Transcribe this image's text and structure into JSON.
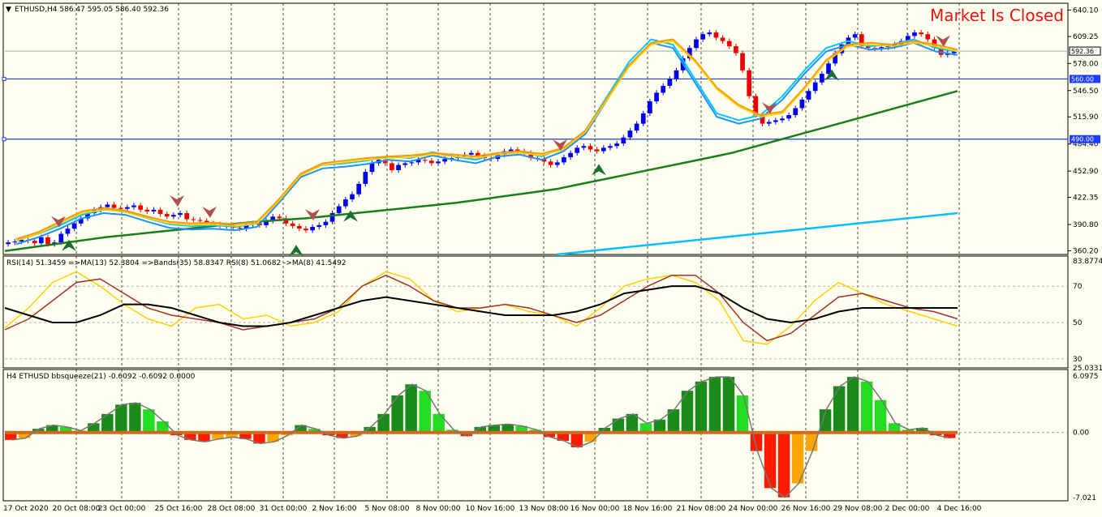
{
  "status": {
    "market_closed": "Market Is Closed"
  },
  "colors": {
    "background": "#fffff0",
    "grid": "#000000",
    "bull_candle": "#0000ee",
    "bear_candle": "#ee0000",
    "sma_slow": "#00bfff",
    "ema_long": "#1a7f1a",
    "ma_fast_1": "#00c8ff",
    "ma_fast_2": "#1e90ff",
    "ma_orange": "#ff9900",
    "ma_yellow": "#ffd000",
    "h_line": "#1e3cff",
    "rsi_yellow": "#ffd000",
    "rsi_brown": "#a0332a",
    "rsi_black": "#000000",
    "sq_dark_green": "#1a8a1a",
    "sq_light_green": "#22dd22",
    "sq_red": "#ff1a00",
    "sq_orange": "#ffa500",
    "sq_dot": "#cc6a20"
  },
  "chart_data": [
    {
      "panel": "price",
      "type": "candlestick",
      "header": "ETHUSD,H4  586.47 595.05 586.40 592.36",
      "symbol": "ETHUSD",
      "timeframe": "H4",
      "ohlc_last": {
        "open": 586.47,
        "high": 595.05,
        "low": 586.4,
        "close": 592.36
      },
      "ylim": [
        356.0,
        648.0
      ],
      "y_ticks": [
        "640.10",
        "609.25",
        "578.00",
        "546.50",
        "515.90",
        "484.40",
        "452.90",
        "422.35",
        "390.80",
        "360.20"
      ],
      "current_price_label": "592.36",
      "horizontal_levels": [
        {
          "value": 560.0,
          "label": "560.00"
        },
        {
          "value": 490.0,
          "label": "490.00"
        }
      ],
      "x_tick_labels": [
        "17 Oct 2020",
        "20 Oct 08:00",
        "23 Oct 00:00",
        "25 Oct 16:00",
        "28 Oct 08:00",
        "31 Oct 00:00",
        "2 Nov 16:00",
        "5 Nov 08:00",
        "8 Nov 00:00",
        "10 Nov 16:00",
        "13 Nov 08:00",
        "16 Nov 00:00",
        "18 Nov 16:00",
        "21 Nov 08:00",
        "24 Nov 00:00",
        "26 Nov 16:00",
        "29 Nov 08:00",
        "2 Dec 00:00",
        "4 Dec 16:00"
      ],
      "closes": [
        370,
        371,
        373,
        372,
        369,
        376,
        368,
        370,
        380,
        386,
        392,
        398,
        404,
        408,
        411,
        414,
        410,
        409,
        411,
        413,
        408,
        406,
        408,
        403,
        400,
        402,
        404,
        397,
        396,
        395,
        392,
        391,
        389,
        390,
        387,
        386,
        391,
        392,
        390,
        395,
        400,
        398,
        392,
        389,
        386,
        384,
        388,
        390,
        394,
        404,
        412,
        420,
        426,
        438,
        452,
        462,
        466,
        462,
        454,
        460,
        462,
        463,
        466,
        465,
        462,
        464,
        467,
        468,
        470,
        472,
        474,
        471,
        468,
        467,
        472,
        476,
        478,
        476,
        474,
        468,
        467,
        464,
        460,
        463,
        469,
        474,
        480,
        482,
        478,
        476,
        480,
        482,
        485,
        492,
        500,
        508,
        520,
        534,
        544,
        552,
        560,
        570,
        584,
        596,
        606,
        612,
        614,
        608,
        604,
        598,
        590,
        570,
        540,
        518,
        508,
        510,
        512,
        514,
        518,
        526,
        536,
        546,
        556,
        566,
        578,
        590,
        600,
        608,
        612,
        598,
        596,
        595,
        597,
        598,
        600,
        604,
        610,
        614,
        612,
        606,
        596,
        588,
        590,
        592
      ],
      "ema_long": [
        360,
        364,
        368,
        372,
        376,
        379,
        382,
        385,
        388,
        391,
        394,
        396,
        398,
        401,
        404,
        407,
        410,
        413,
        416,
        420,
        424,
        428,
        432,
        438,
        444,
        450,
        456,
        462,
        468,
        474,
        482,
        490,
        498,
        506,
        514,
        522,
        530,
        538,
        546
      ],
      "sma_slow": [
        356,
        362,
        368,
        374,
        380,
        386,
        392,
        398,
        404
      ],
      "ma_fast": [
        372,
        380,
        390,
        402,
        408,
        406,
        398,
        391,
        389,
        390,
        388,
        392,
        420,
        450,
        460,
        462,
        465,
        470,
        468,
        475,
        470,
        466,
        474,
        476,
        470,
        480,
        500,
        540,
        580,
        606,
        600,
        560,
        520,
        512,
        518,
        540,
        570,
        596,
        604,
        598,
        600,
        606,
        596,
        592
      ],
      "ma_orange": [
        372,
        380,
        392,
        404,
        408,
        405,
        398,
        392,
        390,
        391,
        389,
        392,
        418,
        448,
        460,
        463,
        466,
        468,
        469,
        472,
        470,
        468,
        472,
        474,
        471,
        478,
        498,
        536,
        574,
        600,
        604,
        580,
        548,
        528,
        516,
        520,
        548,
        580,
        598,
        600,
        598,
        602,
        598,
        592
      ],
      "arrows_down": [
        72,
        218,
        258,
        385,
        690,
        948,
        1162
      ],
      "arrows_up": [
        85,
        365,
        432,
        738,
        1025
      ]
    },
    {
      "panel": "rsi",
      "type": "line",
      "header": "RSI(14) 51.3459  =>MA(13) 52.3804  =>Bands(35) 58.8347  RSI(8) 51.0682  ->MA(8) 41.5492",
      "ylim": [
        25.0331,
        83.8774
      ],
      "y_ticks": [
        "83.8774",
        "70",
        "50",
        "30",
        "25.0331"
      ],
      "series": [
        {
          "name": "RSI(8)",
          "values": [
            47,
            58,
            72,
            78,
            70,
            60,
            52,
            48,
            58,
            60,
            52,
            54,
            48,
            50,
            56,
            70,
            78,
            74,
            62,
            56,
            58,
            60,
            56,
            54,
            48,
            58,
            70,
            74,
            76,
            72,
            62,
            40,
            38,
            48,
            62,
            72,
            66,
            60,
            56,
            52,
            48
          ]
        },
        {
          "name": "MA(13)",
          "values": [
            46,
            52,
            62,
            72,
            74,
            66,
            58,
            54,
            52,
            50,
            46,
            48,
            50,
            52,
            58,
            70,
            76,
            70,
            62,
            58,
            58,
            60,
            58,
            54,
            50,
            54,
            62,
            70,
            76,
            76,
            66,
            50,
            40,
            44,
            54,
            64,
            66,
            62,
            58,
            56,
            52
          ]
        },
        {
          "name": "Bands(35)",
          "values": [
            58,
            54,
            50,
            50,
            54,
            60,
            60,
            58,
            54,
            50,
            48,
            48,
            50,
            54,
            58,
            62,
            64,
            62,
            60,
            58,
            56,
            54,
            54,
            54,
            56,
            60,
            66,
            68,
            70,
            70,
            66,
            58,
            52,
            50,
            52,
            56,
            58,
            58,
            58,
            58,
            58
          ]
        }
      ]
    },
    {
      "panel": "bbsqueeze",
      "type": "bar",
      "header": "H4 ETHUSD bbsqueeze(21) -0.6092 -0.6092 0.0000",
      "ylim": [
        -7.021,
        6.0975
      ],
      "y_ticks": [
        "6.0975",
        "0.00",
        "-7.021"
      ],
      "values": [
        -0.8,
        -0.6,
        0.4,
        0.8,
        0.6,
        0.2,
        1.0,
        2.0,
        3.0,
        3.2,
        2.5,
        1.2,
        -0.3,
        -0.8,
        -1.0,
        -0.7,
        -0.5,
        -0.7,
        -1.2,
        -1.0,
        -0.3,
        0.8,
        0.4,
        -0.3,
        -0.6,
        -0.4,
        0.6,
        2.0,
        4.0,
        5.2,
        4.5,
        2.0,
        0.3,
        -0.4,
        0.6,
        0.8,
        0.9,
        0.7,
        0.3,
        -0.5,
        -0.9,
        -1.6,
        -1.0,
        0.5,
        1.5,
        2.0,
        1.0,
        1.4,
        2.5,
        4.5,
        5.5,
        6.0,
        6.0,
        4.0,
        -2.0,
        -6.0,
        -7.0,
        -5.5,
        -2.0,
        2.5,
        5.0,
        6.0,
        5.5,
        3.5,
        1.0,
        0.3,
        0.5,
        -0.3,
        -0.6
      ]
    }
  ]
}
